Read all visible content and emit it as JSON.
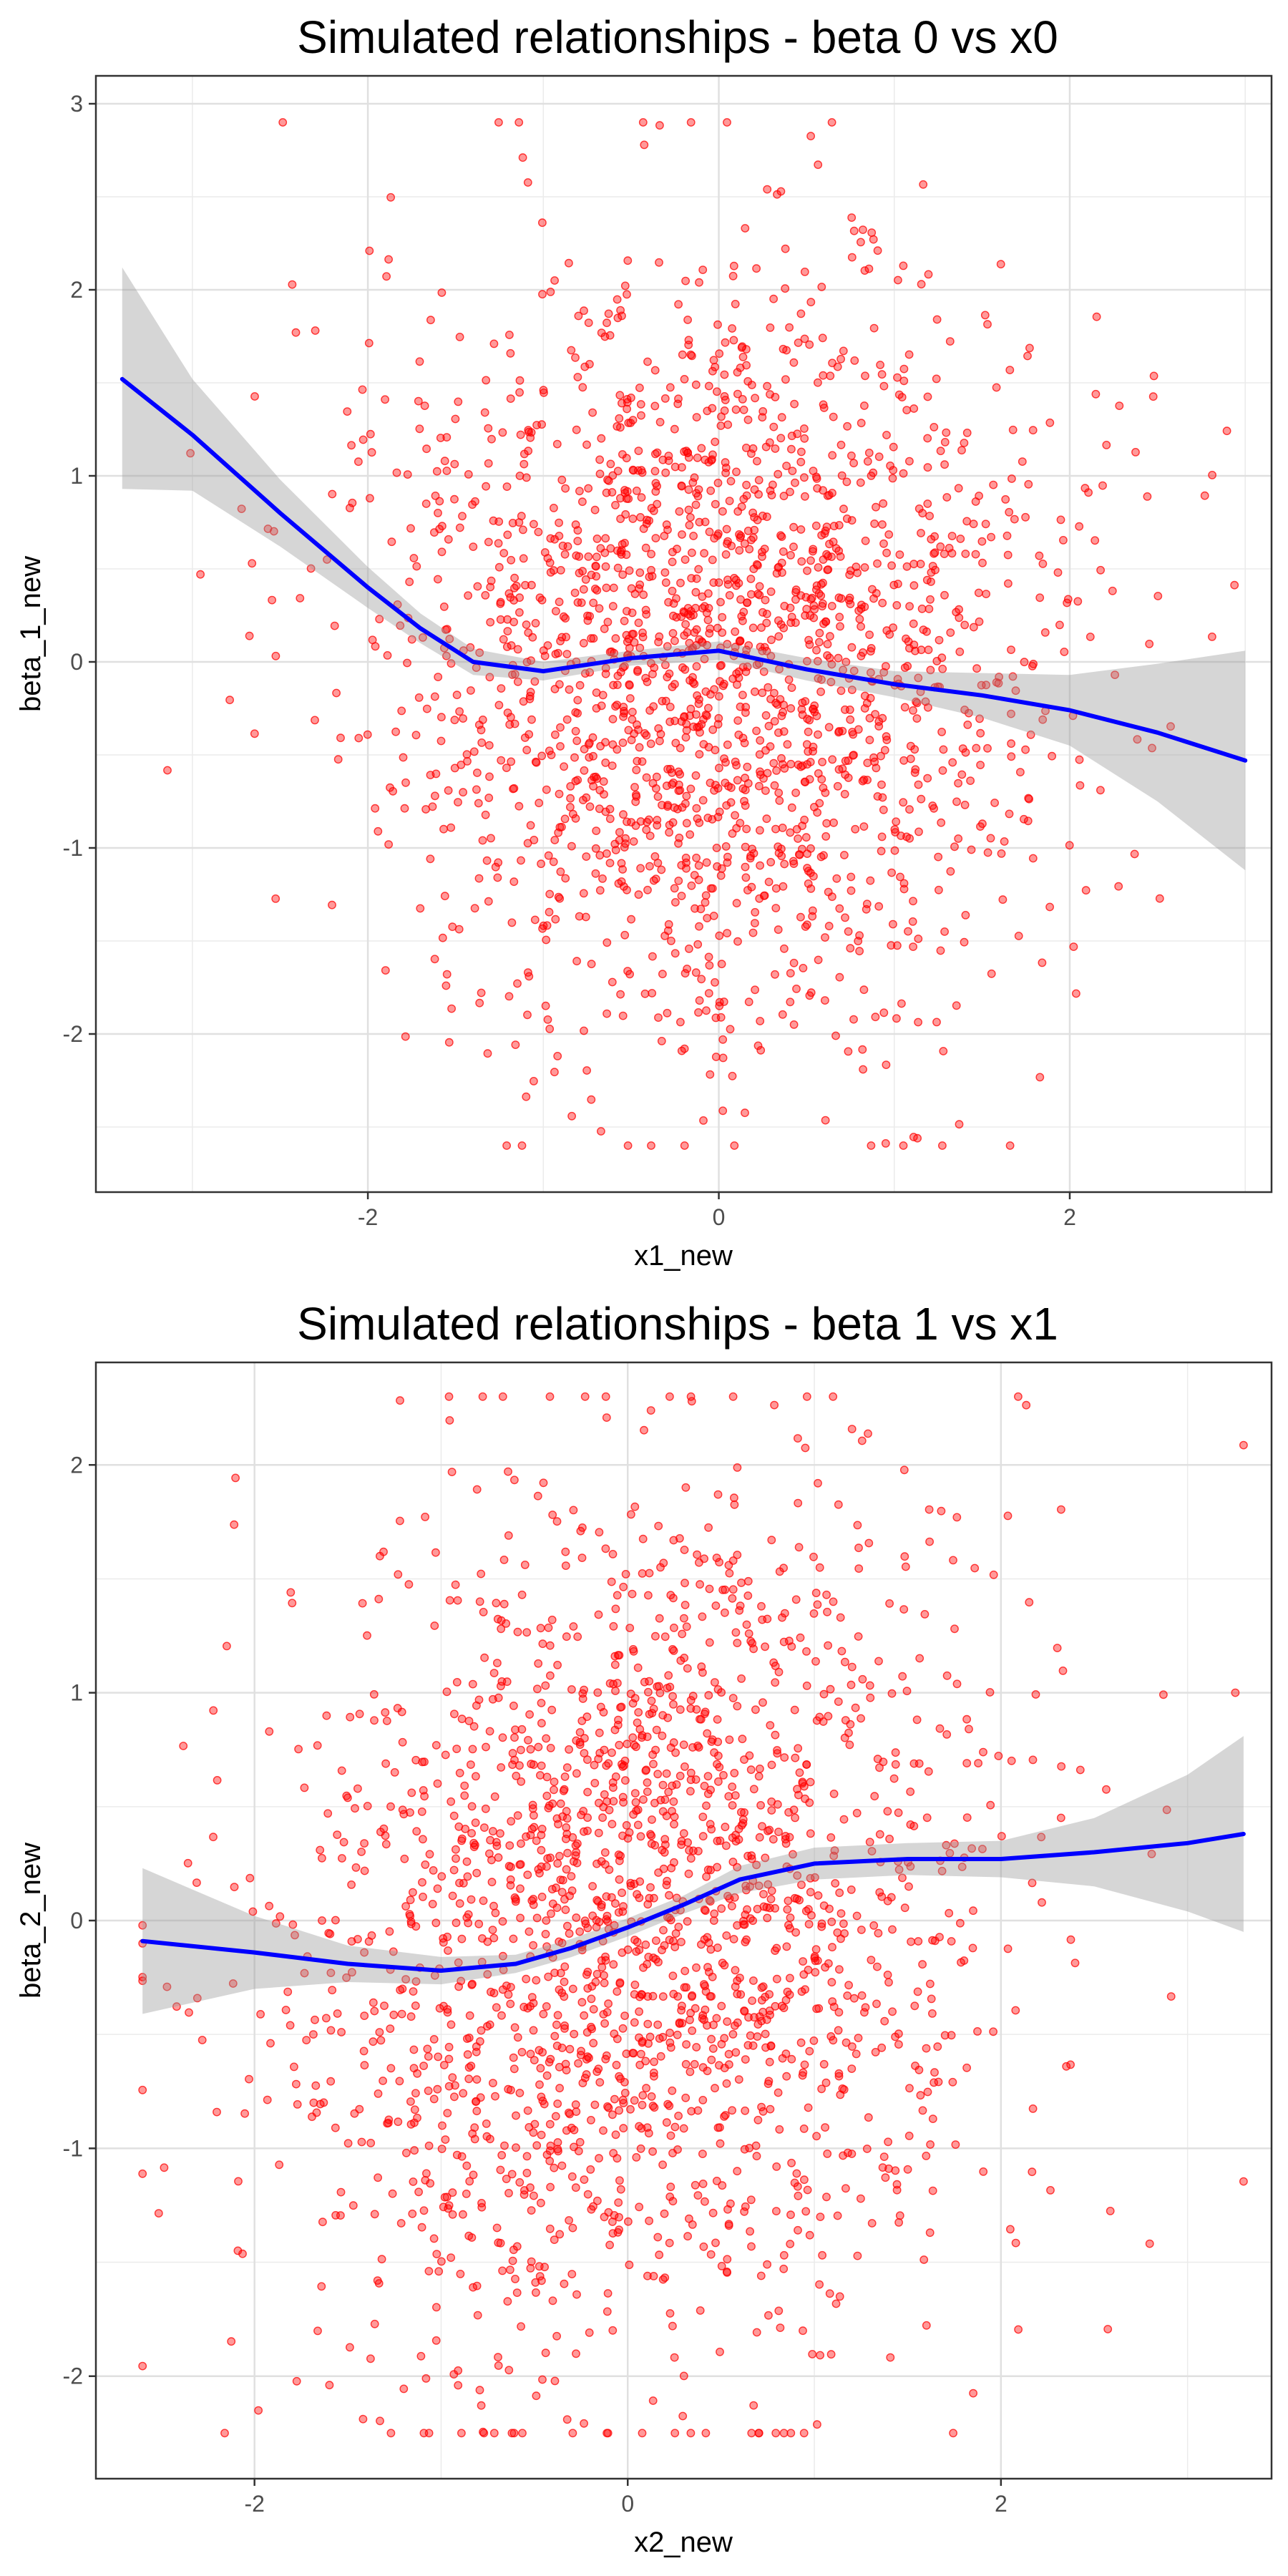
{
  "chart_data": [
    {
      "type": "scatter",
      "title": "Simulated relationships - beta 0 vs x0",
      "xlabel": "x1_new",
      "ylabel": "beta_1_new",
      "xlim": [
        -3.55,
        3.15
      ],
      "ylim": [
        -2.85,
        3.15
      ],
      "xticks": [
        -2,
        0,
        2
      ],
      "yticks": [
        -2,
        -1,
        0,
        1,
        2,
        3
      ],
      "grid": true,
      "point_color": "#ff0000",
      "smooth_color": "#0000ff",
      "band_color": "#999999",
      "points_note": "approx. 2000 points; dense cloud centered near x=0, spread over x -3.4..3.0 and y -2.6..2.9",
      "x_range_points": [
        -3.4,
        3.0
      ],
      "y_range_points": [
        -2.6,
        2.9
      ],
      "smooth": {
        "x": [
          -3.4,
          -3.0,
          -2.5,
          -2.0,
          -1.7,
          -1.4,
          -1.0,
          -0.5,
          0.0,
          0.5,
          1.0,
          1.5,
          2.0,
          2.5,
          3.0
        ],
        "y": [
          1.52,
          1.22,
          0.8,
          0.4,
          0.18,
          0.0,
          -0.05,
          0.02,
          0.06,
          -0.04,
          -0.12,
          -0.18,
          -0.26,
          -0.38,
          -0.53
        ],
        "lower": [
          0.93,
          0.92,
          0.62,
          0.29,
          0.1,
          -0.07,
          -0.1,
          -0.02,
          0.01,
          -0.1,
          -0.19,
          -0.3,
          -0.45,
          -0.75,
          -1.12
        ],
        "upper": [
          2.12,
          1.52,
          0.98,
          0.51,
          0.26,
          0.07,
          0.0,
          0.06,
          0.11,
          0.02,
          -0.05,
          -0.06,
          -0.07,
          -0.01,
          0.06
        ]
      }
    },
    {
      "type": "scatter",
      "title": "Simulated relationships - beta 1 vs x1",
      "xlabel": "x2_new",
      "ylabel": "beta_2_new",
      "xlim": [
        -2.85,
        3.45
      ],
      "ylim": [
        -2.45,
        2.45
      ],
      "xticks": [
        -2,
        0,
        2
      ],
      "yticks": [
        -2,
        -1,
        0,
        1,
        2
      ],
      "grid": true,
      "point_color": "#ff0000",
      "smooth_color": "#0000ff",
      "band_color": "#999999",
      "points_note": "approx. 2000 points; spread over x -2.6..3.3 and y -2.3..2.3",
      "x_range_points": [
        -2.6,
        3.3
      ],
      "y_range_points": [
        -2.25,
        2.3
      ],
      "smooth": {
        "x": [
          -2.6,
          -2.0,
          -1.5,
          -1.0,
          -0.6,
          -0.3,
          0.0,
          0.3,
          0.6,
          1.0,
          1.5,
          2.0,
          2.5,
          3.0,
          3.3
        ],
        "y": [
          -0.09,
          -0.14,
          -0.19,
          -0.22,
          -0.19,
          -0.12,
          -0.03,
          0.07,
          0.18,
          0.25,
          0.27,
          0.27,
          0.3,
          0.34,
          0.38
        ],
        "lower": [
          -0.41,
          -0.3,
          -0.27,
          -0.28,
          -0.23,
          -0.16,
          -0.07,
          0.03,
          0.12,
          0.18,
          0.2,
          0.19,
          0.15,
          0.04,
          -0.05
        ],
        "upper": [
          0.23,
          0.02,
          -0.11,
          -0.16,
          -0.15,
          -0.08,
          0.01,
          0.11,
          0.24,
          0.32,
          0.34,
          0.35,
          0.45,
          0.64,
          0.81
        ]
      }
    }
  ]
}
